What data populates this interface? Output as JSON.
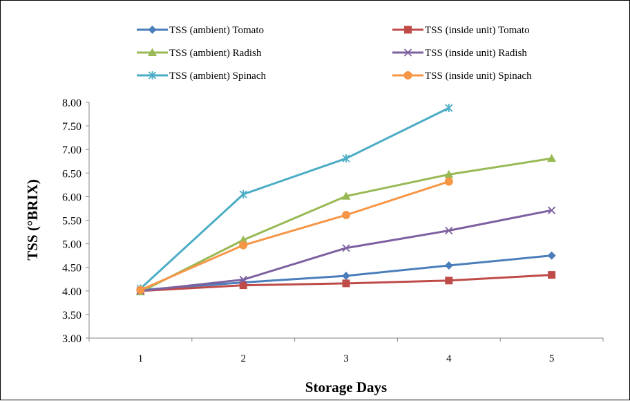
{
  "chart_data": {
    "type": "line",
    "title": "",
    "xlabel": "Storage Days",
    "ylabel": "TSS (°BRIX)",
    "categories": [
      "1",
      "2",
      "3",
      "4",
      "5"
    ],
    "ylim": [
      3.0,
      8.0
    ],
    "yticks": [
      "3.00",
      "3.50",
      "4.00",
      "4.50",
      "5.00",
      "5.50",
      "6.00",
      "6.50",
      "7.00",
      "7.50",
      "8.00"
    ],
    "grid": false,
    "legend_position": "top",
    "series": [
      {
        "name": "TSS (ambient) Tomato",
        "color": "#4a7ebb",
        "marker": "diamond",
        "values": [
          4.02,
          4.18,
          4.32,
          4.54,
          4.75
        ]
      },
      {
        "name": "TSS (inside unit) Tomato",
        "color": "#be4b48",
        "marker": "square",
        "values": [
          4.0,
          4.12,
          4.16,
          4.22,
          4.34
        ]
      },
      {
        "name": "TSS (ambient) Radish",
        "color": "#98b954",
        "marker": "triangle",
        "values": [
          3.98,
          5.08,
          6.01,
          6.47,
          6.81
        ]
      },
      {
        "name": "TSS (inside unit) Radish",
        "color": "#7d60a0",
        "marker": "x",
        "values": [
          4.0,
          4.24,
          4.91,
          5.28,
          5.71
        ]
      },
      {
        "name": "TSS (ambient) Spinach",
        "color": "#4bacc6",
        "marker": "star",
        "values": [
          4.05,
          6.05,
          6.81,
          7.88,
          null
        ]
      },
      {
        "name": "TSS (inside unit) Spinach",
        "color": "#f79646",
        "marker": "circle",
        "values": [
          4.02,
          4.97,
          5.61,
          6.32,
          null
        ]
      }
    ]
  }
}
